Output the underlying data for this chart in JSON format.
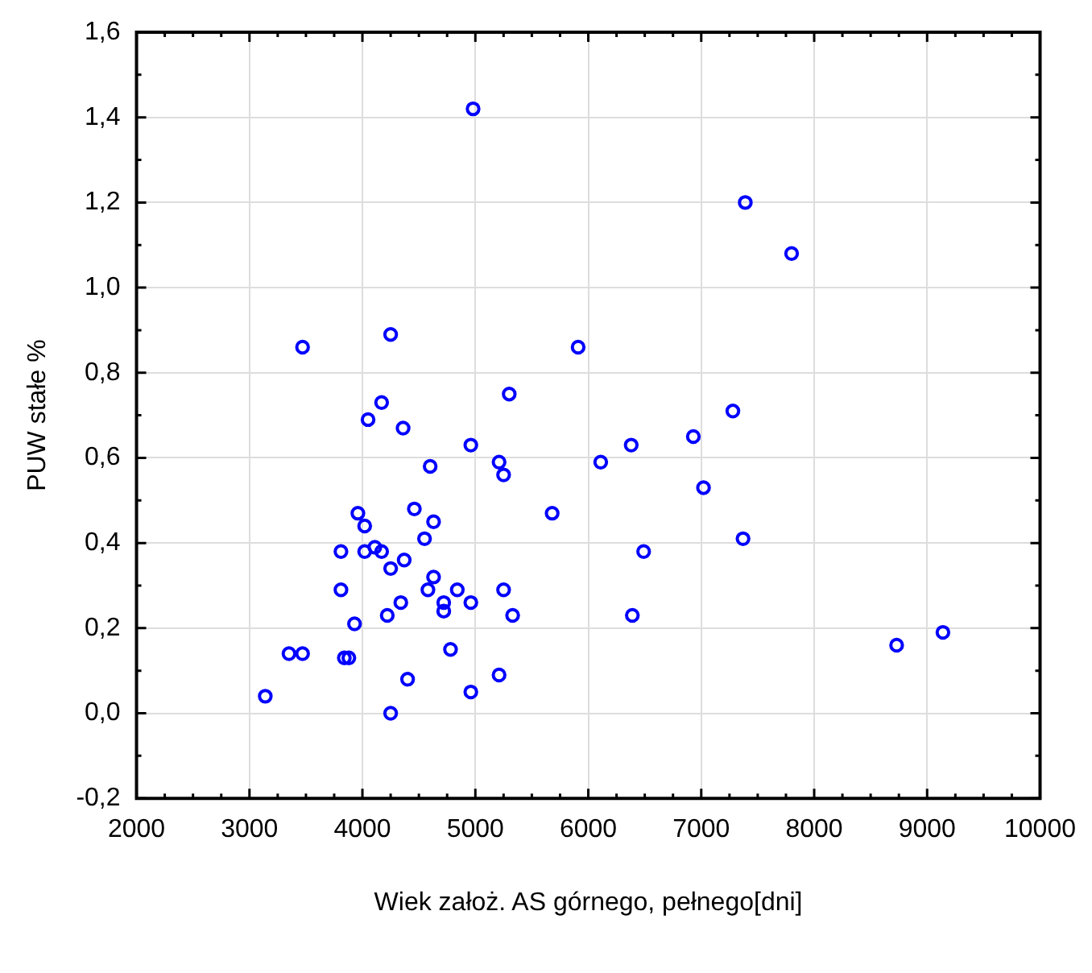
{
  "chart_data": {
    "type": "scatter",
    "xlabel": "Wiek założ. AS górnego, pełnego[dni]",
    "ylabel": "PUW stałe %",
    "xlim": [
      2000,
      10000
    ],
    "xticks": [
      2000,
      3000,
      4000,
      5000,
      6000,
      7000,
      8000,
      9000,
      10000
    ],
    "ylim": [
      -0.2,
      1.6
    ],
    "yticks": [
      {
        "value": -0.2,
        "label": "-0,2"
      },
      {
        "value": 0,
        "label": "0,0"
      },
      {
        "value": 0.2,
        "label": "0,2"
      },
      {
        "value": 0.4,
        "label": "0,4"
      },
      {
        "value": 0.6,
        "label": "0,6"
      },
      {
        "value": 0.8,
        "label": "0,8"
      },
      {
        "value": 1.0,
        "label": "1,0"
      },
      {
        "value": 1.2,
        "label": "1,2"
      },
      {
        "value": 1.4,
        "label": "1,4"
      },
      {
        "value": 1.6,
        "label": "1,6"
      }
    ],
    "grid": true,
    "legend": false,
    "marker": "circle",
    "series": [
      {
        "color": "#0000ff",
        "x": [
          3140,
          3350,
          3470,
          3840,
          3880,
          3930,
          3810,
          3810,
          3960,
          4020,
          4020,
          4110,
          4170,
          4250,
          4370,
          4220,
          4340,
          4400,
          4250,
          4460,
          4630,
          4550,
          4630,
          4580,
          4720,
          4720,
          4840,
          4960,
          4780,
          4960,
          5210,
          5250,
          5330,
          5680,
          4960,
          5210,
          5250,
          4600,
          6110,
          6380,
          6390,
          4360,
          4050,
          4170,
          5300,
          3470,
          4250,
          4980,
          5910,
          7390,
          7800,
          7280,
          6930,
          7020,
          6490,
          7370,
          8730,
          9140
        ],
        "values": [
          0.04,
          0.14,
          0.14,
          0.13,
          0.13,
          0.21,
          0.29,
          0.38,
          0.47,
          0.44,
          0.38,
          0.39,
          0.38,
          0.34,
          0.36,
          0.23,
          0.26,
          0.08,
          0.0,
          0.48,
          0.45,
          0.41,
          0.32,
          0.29,
          0.26,
          0.24,
          0.29,
          0.26,
          0.15,
          0.05,
          0.09,
          0.29,
          0.23,
          0.47,
          0.63,
          0.59,
          0.56,
          0.58,
          0.59,
          0.63,
          0.23,
          0.67,
          0.69,
          0.73,
          0.75,
          0.86,
          0.89,
          1.42,
          0.86,
          1.2,
          1.08,
          0.71,
          0.65,
          0.53,
          0.38,
          0.41,
          0.16,
          0.19
        ]
      }
    ]
  }
}
